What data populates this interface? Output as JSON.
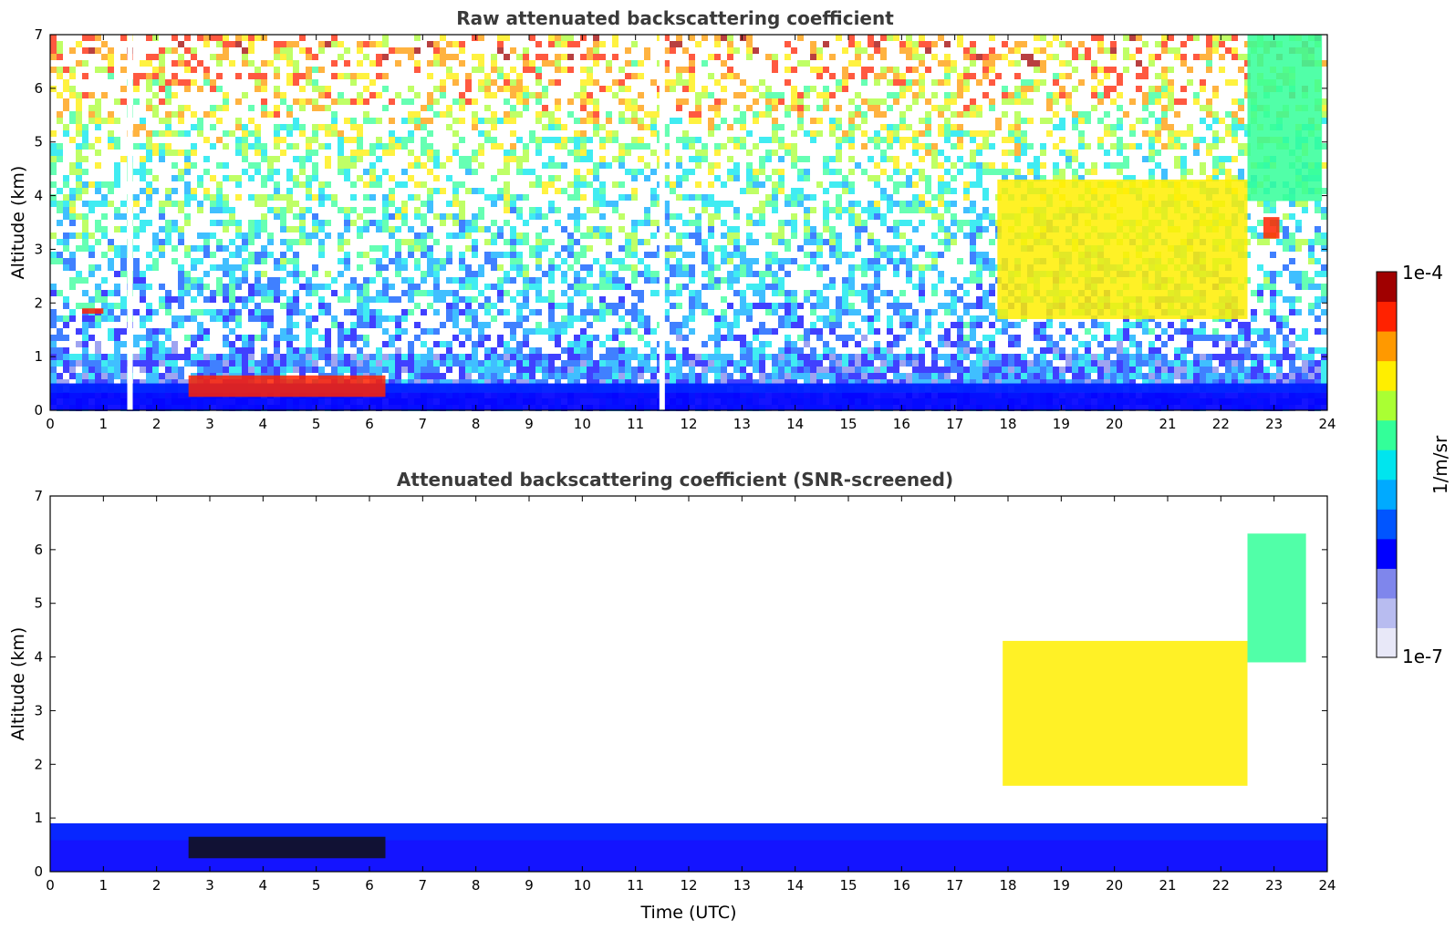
{
  "chart_data": [
    {
      "type": "heatmap",
      "title": "Raw attenuated backscattering coefficient",
      "xlabel": "",
      "ylabel": "Altitude (km)",
      "xlim": [
        0,
        24
      ],
      "ylim": [
        0,
        7
      ],
      "xticks": [
        "0",
        "1",
        "2",
        "3",
        "4",
        "5",
        "6",
        "7",
        "8",
        "9",
        "10",
        "11",
        "12",
        "13",
        "14",
        "15",
        "16",
        "17",
        "18",
        "19",
        "20",
        "21",
        "22",
        "23",
        "24"
      ],
      "yticks": [
        "0",
        "1",
        "2",
        "3",
        "4",
        "5",
        "6",
        "7"
      ],
      "features": [
        {
          "name": "surface aerosol layer",
          "x": [
            0,
            24
          ],
          "y": [
            0,
            0.5
          ],
          "level": "low"
        },
        {
          "name": "low cloud",
          "x": [
            2.6,
            6.3
          ],
          "y": [
            0.25,
            0.65
          ],
          "level": "high"
        },
        {
          "name": "cloud patch",
          "x": [
            0.6,
            1.0
          ],
          "y": [
            1.8,
            1.9
          ],
          "level": "high"
        },
        {
          "name": "cirrus",
          "x": [
            17.8,
            22.5
          ],
          "y": [
            1.7,
            4.3
          ],
          "level": "medium-high"
        },
        {
          "name": "cirrus",
          "x": [
            22.5,
            23.9
          ],
          "y": [
            3.9,
            7.0
          ],
          "level": "medium"
        },
        {
          "name": "cloud patch",
          "x": [
            22.8,
            23.1
          ],
          "y": [
            3.2,
            3.6
          ],
          "level": "high"
        }
      ],
      "data_gaps_x": [
        1.5,
        11.5
      ]
    },
    {
      "type": "heatmap",
      "title": "Attenuated backscattering coefficient (SNR-screened)",
      "xlabel": "Time (UTC)",
      "ylabel": "Altitude (km)",
      "xlim": [
        0,
        24
      ],
      "ylim": [
        0,
        7
      ],
      "xticks": [
        "0",
        "1",
        "2",
        "3",
        "4",
        "5",
        "6",
        "7",
        "8",
        "9",
        "10",
        "11",
        "12",
        "13",
        "14",
        "15",
        "16",
        "17",
        "18",
        "19",
        "20",
        "21",
        "22",
        "23",
        "24"
      ],
      "yticks": [
        "0",
        "1",
        "2",
        "3",
        "4",
        "5",
        "6",
        "7"
      ],
      "features": [
        {
          "name": "boundary layer",
          "x": [
            0,
            24
          ],
          "y": [
            0,
            0.9
          ],
          "level": "low"
        },
        {
          "name": "low cloud",
          "x": [
            2.6,
            6.3
          ],
          "y": [
            0.25,
            0.65
          ],
          "level": "saturated"
        },
        {
          "name": "cirrus",
          "x": [
            17.9,
            22.5
          ],
          "y": [
            1.6,
            4.3
          ],
          "level": "medium-high"
        },
        {
          "name": "cirrus",
          "x": [
            22.5,
            23.6
          ],
          "y": [
            3.9,
            6.3
          ],
          "level": "medium"
        }
      ]
    }
  ],
  "colorbar": {
    "label": "1/m/sr",
    "max_label": "1e-4",
    "min_label": "1e-7",
    "scale": "log",
    "colors": [
      "#e8e8f8",
      "#b8bcf0",
      "#7f86ec",
      "#0000ff",
      "#0055ff",
      "#00aaff",
      "#00e5ee",
      "#33ff99",
      "#aaff33",
      "#ffee00",
      "#ff9900",
      "#ff2200",
      "#a00000"
    ]
  }
}
